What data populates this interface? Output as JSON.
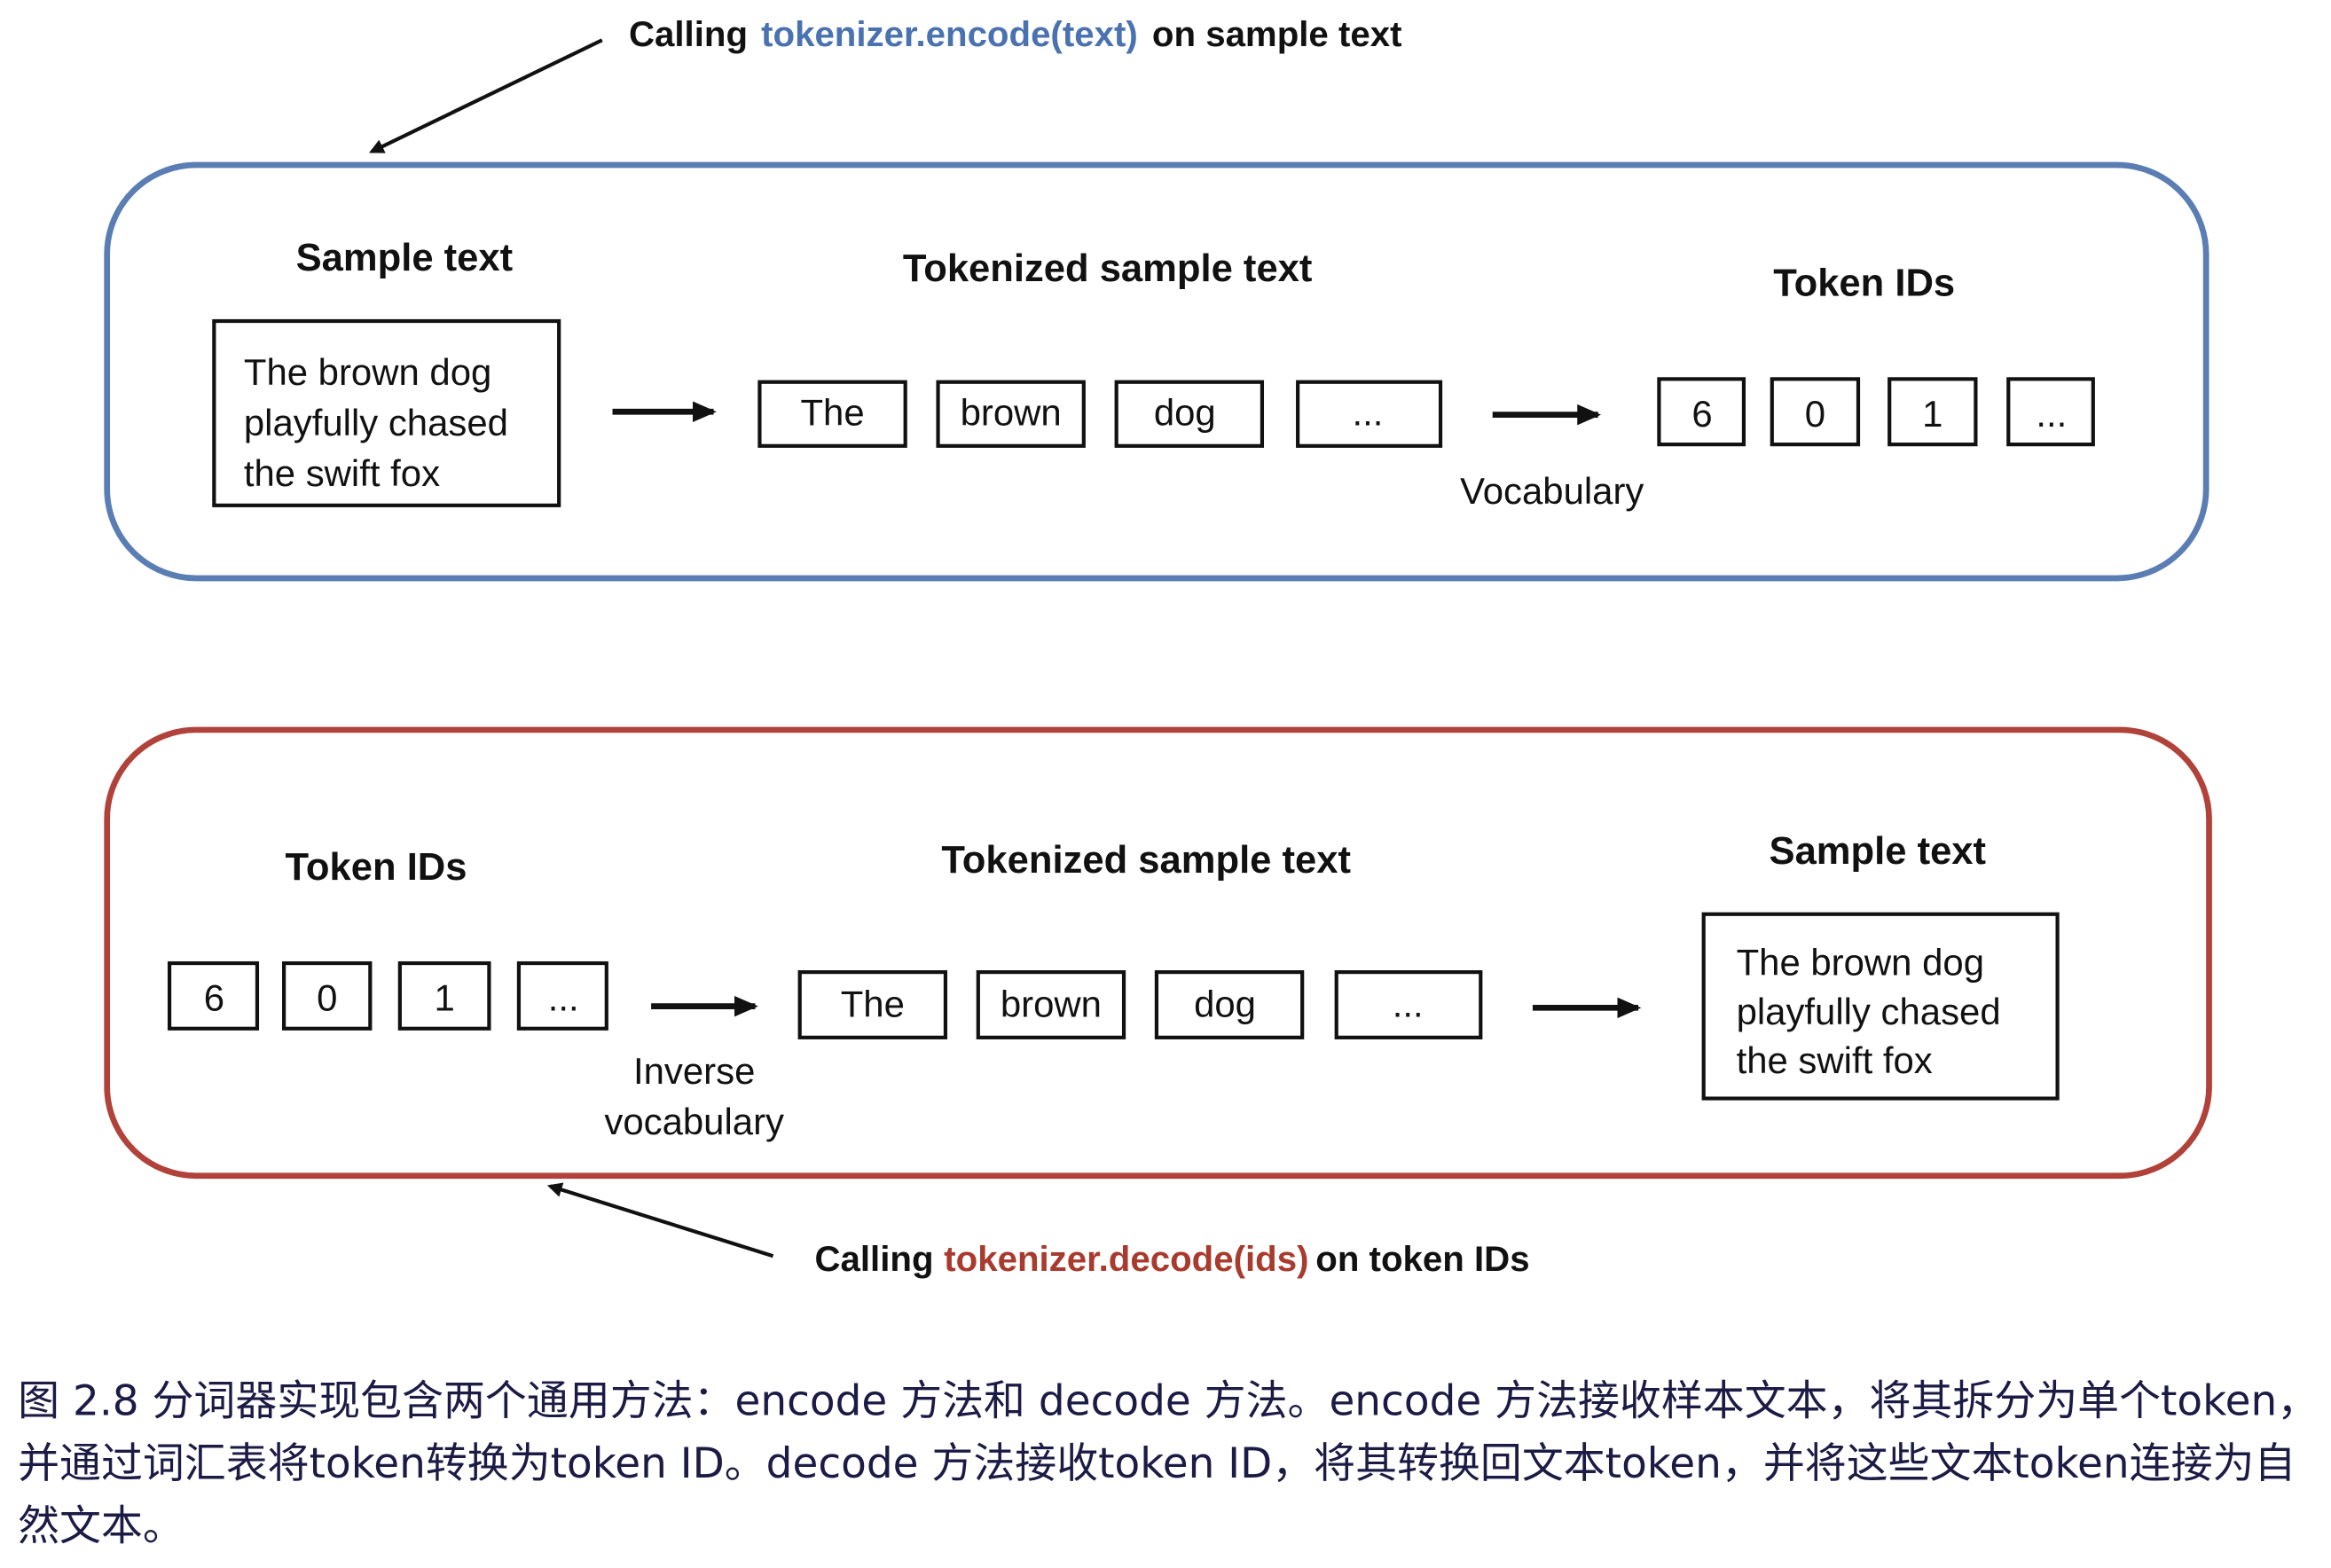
{
  "colors": {
    "encode": "#5a7db4",
    "decode": "#b0423a",
    "encode_code": "#4a72b0",
    "decode_code": "#a83a2e"
  },
  "encode": {
    "call_prefix": "Calling",
    "call_code": "tokenizer.encode(text)",
    "call_suffix": "on sample text",
    "sample_label": "Sample text",
    "sample_lines": [
      "The brown dog",
      "playfully chased",
      "the swift fox"
    ],
    "tokenized_label": "Tokenized sample text",
    "tokens": [
      "The",
      "brown",
      "dog",
      "..."
    ],
    "ids_label": "Token IDs",
    "ids": [
      "6",
      "0",
      "1",
      "..."
    ],
    "arrow_label": "Vocabulary"
  },
  "decode": {
    "call_prefix": "Calling",
    "call_code": "tokenizer.decode(ids)",
    "call_suffix": "on token IDs",
    "ids_label": "Token IDs",
    "ids": [
      "6",
      "0",
      "1",
      "..."
    ],
    "arrow_label_lines": [
      "Inverse",
      "vocabulary"
    ],
    "tokenized_label": "Tokenized sample text",
    "tokens": [
      "The",
      "brown",
      "dog",
      "..."
    ],
    "sample_label": "Sample text",
    "sample_lines": [
      "The brown dog",
      "playfully chased",
      "the swift fox"
    ]
  },
  "caption": "图 2.8 分词器实现包含两个通用方法：encode 方法和 decode 方法。encode 方法接收样本文本，将其拆分为单个token，并通过词汇表将token转换为token ID。decode 方法接收token ID，将其转换回文本token，并将这些文本token连接为自然文本。"
}
